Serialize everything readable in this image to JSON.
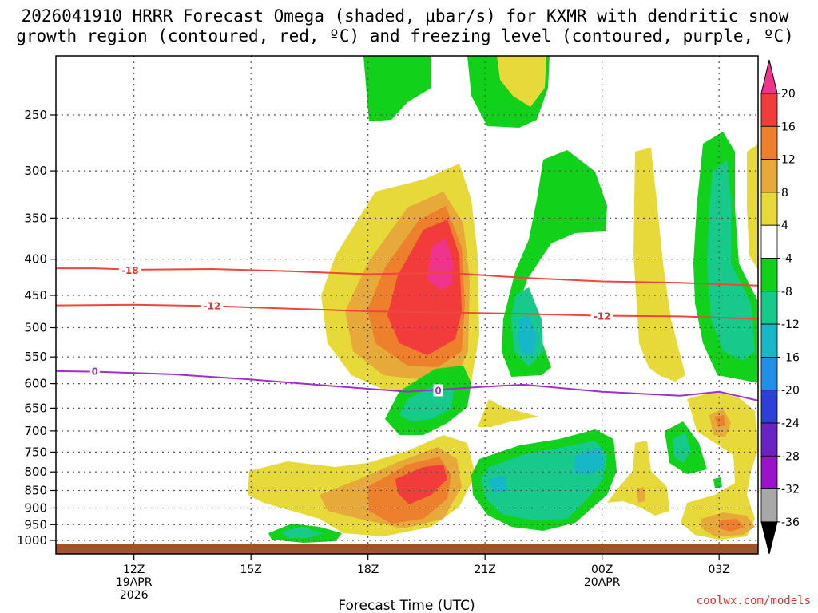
{
  "chart_data": {
    "type": "contour",
    "title_line1": "2026041910 HRRR Forecast Omega (shaded, μbar/s) for KXMR with dendritic snow",
    "title_line2": "growth region (contoured, red, ºC) and freezing level (contoured, purple, ºC)",
    "xlabel": "Forecast Time (UTC)",
    "ylabel": "",
    "credit": "coolwx.com/models",
    "x_range_hours": [
      10,
      28
    ],
    "x_ticks": [
      {
        "hour": 12,
        "label": "12Z",
        "sub1": "19APR",
        "sub2": "2026"
      },
      {
        "hour": 15,
        "label": "15Z",
        "sub1": "",
        "sub2": ""
      },
      {
        "hour": 18,
        "label": "18Z",
        "sub1": "",
        "sub2": ""
      },
      {
        "hour": 21,
        "label": "21Z",
        "sub1": "",
        "sub2": ""
      },
      {
        "hour": 24,
        "label": "00Z",
        "sub1": "20APR",
        "sub2": ""
      },
      {
        "hour": 27,
        "label": "03Z",
        "sub1": "",
        "sub2": ""
      }
    ],
    "y_axis": "pressure (hPa), log scale",
    "y_range": [
      200,
      1020
    ],
    "y_ticks": [
      250,
      300,
      350,
      400,
      450,
      500,
      550,
      600,
      650,
      700,
      750,
      800,
      850,
      900,
      950,
      1000
    ],
    "colorbar": {
      "labels": [
        "20",
        "16",
        "12",
        "8",
        "4",
        "-4",
        "-8",
        "-12",
        "-16",
        "-20",
        "-24",
        "-28",
        "-32",
        "-36"
      ],
      "colors": [
        "#f0348c",
        "#f23c3c",
        "#ee7f2d",
        "#e6a93a",
        "#e8d93a",
        "#ffffff",
        "#11d11a",
        "#17c98a",
        "#16b7c6",
        "#1f8fe8",
        "#2c3fd8",
        "#6a22c4",
        "#9a12c9",
        "#a8a8a8",
        "#000000"
      ]
    },
    "contours": [
      {
        "name": "-18 °C isotherm",
        "label": "-18",
        "color": "#f0463c",
        "points": [
          [
            10,
            412
          ],
          [
            11,
            412
          ],
          [
            12,
            414
          ],
          [
            14,
            413
          ],
          [
            16,
            416
          ],
          [
            18,
            420
          ],
          [
            20,
            418
          ],
          [
            22,
            425
          ],
          [
            24,
            430
          ],
          [
            26,
            432
          ],
          [
            28,
            436
          ]
        ]
      },
      {
        "name": "-12 °C isotherm",
        "label": "-12",
        "color": "#f0463c",
        "points": [
          [
            10,
            465
          ],
          [
            12,
            464
          ],
          [
            14,
            466
          ],
          [
            16,
            470
          ],
          [
            18,
            474
          ],
          [
            20,
            476
          ],
          [
            22,
            478
          ],
          [
            24,
            481
          ],
          [
            26,
            482
          ],
          [
            28,
            486
          ]
        ]
      },
      {
        "name": "0 °C freezing level",
        "label": "0",
        "color": "#a12fcf",
        "points": [
          [
            10,
            576
          ],
          [
            11,
            577
          ],
          [
            13,
            582
          ],
          [
            15,
            592
          ],
          [
            17,
            604
          ],
          [
            19,
            616
          ],
          [
            21,
            606
          ],
          [
            22,
            602
          ],
          [
            24,
            616
          ],
          [
            26,
            624
          ],
          [
            27,
            616
          ],
          [
            28,
            634
          ]
        ]
      }
    ],
    "contour_labels": [
      {
        "text": "-18",
        "hour": 11.9,
        "p": 415
      },
      {
        "text": "-12",
        "hour": 14.0,
        "p": 466
      },
      {
        "text": "-12",
        "hour": 24.0,
        "p": 482
      },
      {
        "text": "0",
        "hour": 11.0,
        "p": 577
      },
      {
        "text": "0",
        "hour": 19.8,
        "p": 614
      }
    ],
    "omega_regions": [
      {
        "label": "ascent core upper",
        "value": 20,
        "hour": 19.8,
        "p": 420
      },
      {
        "label": "ascent upper",
        "value": 16,
        "hour": 19.2,
        "p": 450
      },
      {
        "label": "ascent lower",
        "value": 16,
        "hour": 19.2,
        "p": 830
      },
      {
        "label": "descent",
        "value": -8,
        "hour": 22.5,
        "p": 820
      },
      {
        "label": "descent",
        "value": -8,
        "hour": 19.8,
        "p": 650
      },
      {
        "label": "descent",
        "value": -8,
        "hour": 22.3,
        "p": 480
      },
      {
        "label": "descent",
        "value": -8,
        "hour": 27.0,
        "p": 350
      }
    ]
  }
}
